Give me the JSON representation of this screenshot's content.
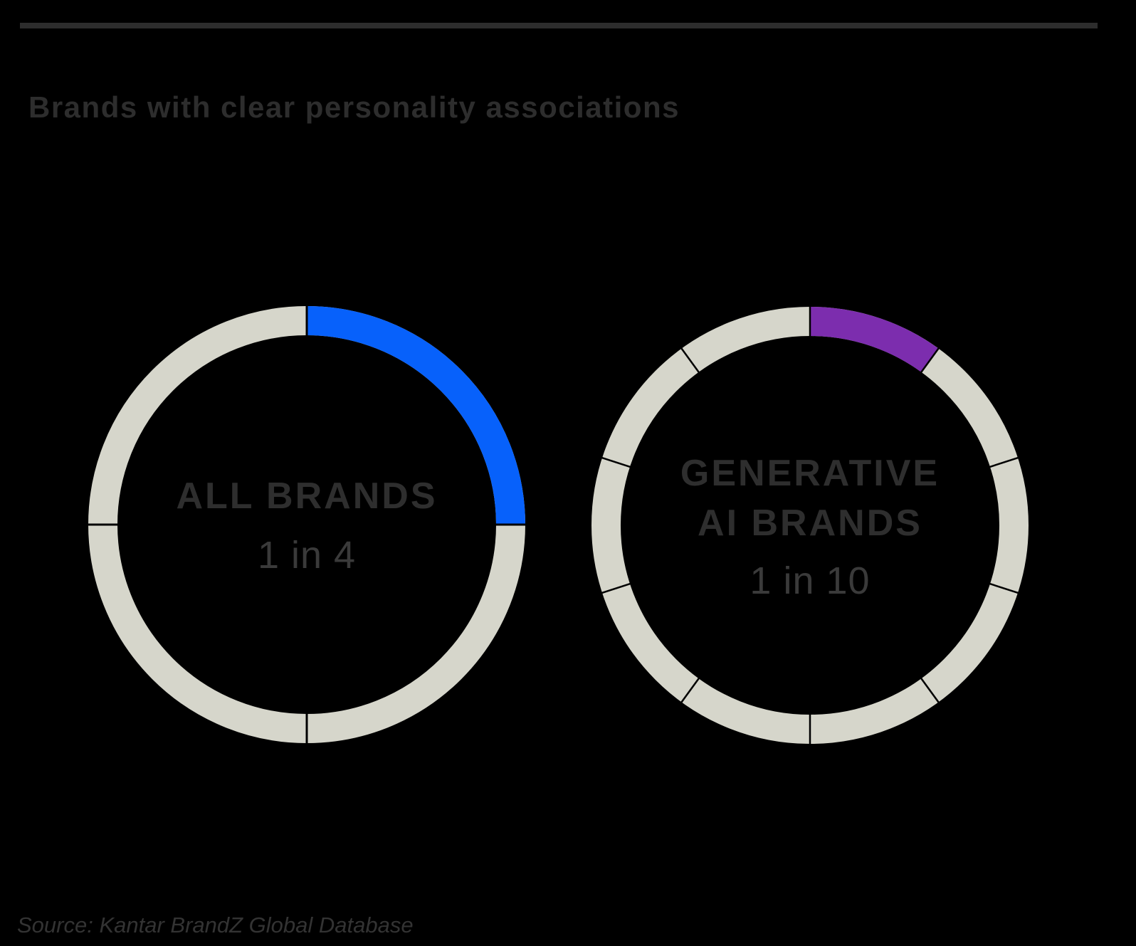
{
  "title": "Brands with clear personality associations",
  "source": "Source: Kantar BrandZ Global Database",
  "colors": {
    "background": "#000000",
    "accent_bar": "#2D2D2D",
    "title_text": "#2D2D2D",
    "ring_base": "#D6D6CB",
    "divider": "#000000",
    "label_text": "#2E2E2E",
    "value_text": "#3A3A3A",
    "source_text": "#333333",
    "all_brands_highlight": "#0761FB",
    "gen_ai_highlight": "#7C2DAE"
  },
  "chart_data": [
    {
      "type": "donut",
      "title": "ALL BRANDS",
      "label_lines": [
        "ALL BRANDS"
      ],
      "value_label": "1 in 4",
      "fraction": 0.25,
      "value_pct": 25,
      "segments": 4,
      "highlighted_segments": 1,
      "highlight_color": "#0761FB",
      "ring_color": "#D6D6CB",
      "highlight_start_angle_deg": 0,
      "legend_position": "none"
    },
    {
      "type": "donut",
      "title": "GENERATIVE AI BRANDS",
      "label_lines": [
        "GENERATIVE",
        "AI BRANDS"
      ],
      "value_label": "1 in 10",
      "fraction": 0.1,
      "value_pct": 10,
      "segments": 10,
      "highlighted_segments": 1,
      "highlight_color": "#7C2DAE",
      "ring_color": "#D6D6CB",
      "highlight_start_angle_deg": 0,
      "legend_position": "none"
    }
  ]
}
